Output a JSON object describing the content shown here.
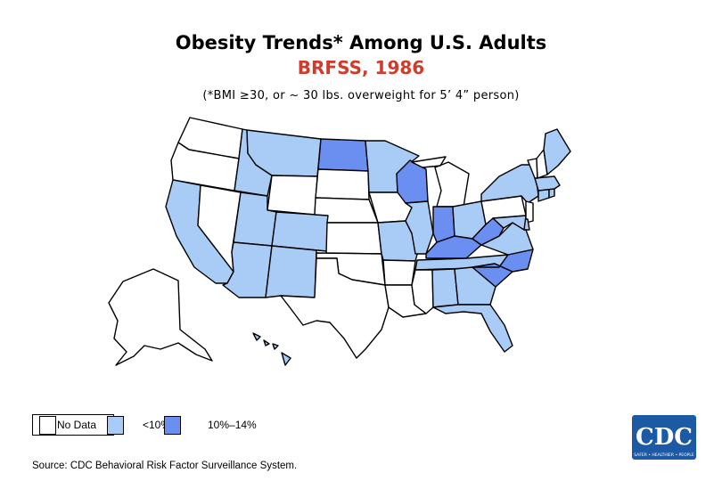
{
  "title": "Obesity Trends* Among U.S. Adults",
  "subtitle_year": "BRFSS, 1986",
  "note": "(*BMI ≥30, or ~ 30 lbs. overweight for 5’ 4” person)",
  "legend": {
    "items": [
      {
        "label": "No Data",
        "color": "#ffffff"
      },
      {
        "label": "<10%",
        "color": "#a8ccf5"
      },
      {
        "label": "10%–14%",
        "color": "#6a8ff0"
      }
    ]
  },
  "source": "Source: CDC Behavioral Risk Factor Surveillance System.",
  "logo": {
    "text": "CDC",
    "tagline": "SAFER • HEALTHIER • PEOPLE"
  },
  "colors": {
    "no_data": "#ffffff",
    "low": "#a8ccf5",
    "mid": "#6a8ff0",
    "border": "#000000",
    "title_red": "#d13b2b",
    "logo_blue": "#1c5aa6"
  },
  "states": {
    "no_data": [
      "WA",
      "OR",
      "NV",
      "WY",
      "SD",
      "NE",
      "KS",
      "OK",
      "TX",
      "AR",
      "LA",
      "MS",
      "IA",
      "MI",
      "PA",
      "NJ",
      "VT",
      "NH",
      "AK"
    ],
    "low": [
      "CA",
      "ID",
      "MT",
      "UT",
      "AZ",
      "NM",
      "CO",
      "MN",
      "IL",
      "MO",
      "OH",
      "TN",
      "AL",
      "GA",
      "FL",
      "NY",
      "ME",
      "MA",
      "CT",
      "RI",
      "DE",
      "MD",
      "VA",
      "HI"
    ],
    "mid": [
      "ND",
      "WI",
      "IN",
      "KY",
      "WV",
      "NC",
      "SC"
    ]
  }
}
